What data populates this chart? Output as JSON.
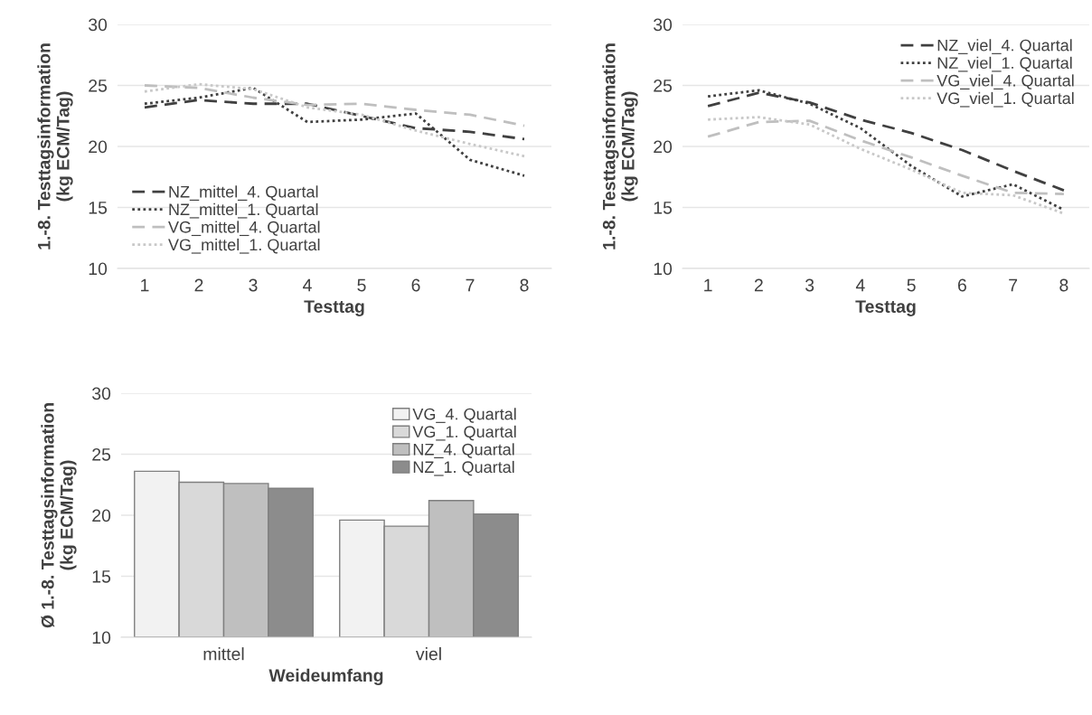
{
  "chart_data": [
    {
      "type": "line",
      "xlabel": "Testtag",
      "ylabel": "1.-8. Testtagsinformation\n(kg ECM/Tag)",
      "categories": [
        "1",
        "2",
        "3",
        "4",
        "5",
        "6",
        "7",
        "8"
      ],
      "ylim": [
        10,
        30
      ],
      "yticks": [
        10,
        15,
        20,
        25,
        30
      ],
      "grid": "y",
      "legend": "bottom left",
      "marker": "none",
      "series": [
        {
          "name": "NZ_mittel_4. Quartal",
          "color": "#404040",
          "line_style": "dashed",
          "values": [
            23.2,
            23.8,
            23.5,
            23.5,
            22.5,
            21.5,
            21.2,
            20.6
          ]
        },
        {
          "name": "NZ_mittel_1. Quartal",
          "color": "#404040",
          "line_style": "dotted",
          "values": [
            23.5,
            24.0,
            24.8,
            22.0,
            22.2,
            22.7,
            18.9,
            17.6
          ]
        },
        {
          "name": "VG_mittel_4. Quartal",
          "color": "#bfbfbf",
          "line_style": "dashed",
          "values": [
            25.0,
            24.8,
            24.0,
            23.4,
            23.5,
            23.0,
            22.6,
            21.7
          ]
        },
        {
          "name": "VG_mittel_1. Quartal",
          "color": "#c8c8c8",
          "line_style": "dotted",
          "values": [
            24.5,
            25.1,
            24.7,
            23.2,
            22.6,
            21.3,
            20.2,
            19.2
          ]
        }
      ]
    },
    {
      "type": "line",
      "xlabel": "Testtag",
      "ylabel": "1.-8. Testtagsinformation\n(kg ECM/Tag)",
      "categories": [
        "1",
        "2",
        "3",
        "4",
        "5",
        "6",
        "7",
        "8"
      ],
      "ylim": [
        10,
        30
      ],
      "yticks": [
        10,
        15,
        20,
        25,
        30
      ],
      "grid": "y",
      "legend": "top right",
      "marker": "none",
      "series": [
        {
          "name": "NZ_viel_4. Quartal",
          "color": "#404040",
          "line_style": "dashed",
          "values": [
            23.3,
            24.4,
            23.6,
            22.2,
            21.1,
            19.7,
            18.0,
            16.4
          ]
        },
        {
          "name": "NZ_viel_1. Quartal",
          "color": "#404040",
          "line_style": "dotted",
          "values": [
            24.1,
            24.6,
            23.5,
            21.5,
            18.4,
            15.9,
            16.9,
            14.8
          ]
        },
        {
          "name": "VG_viel_4. Quartal",
          "color": "#bfbfbf",
          "line_style": "dashed",
          "values": [
            20.8,
            22.0,
            22.1,
            20.5,
            19.1,
            17.6,
            16.2,
            16.1
          ]
        },
        {
          "name": "VG_viel_1. Quartal",
          "color": "#c8c8c8",
          "line_style": "dotted",
          "values": [
            22.2,
            22.4,
            21.8,
            19.8,
            18.1,
            16.2,
            16.0,
            14.5
          ]
        }
      ]
    },
    {
      "type": "bar",
      "xlabel": "Weideumfang",
      "ylabel": "Ø 1.-8. Testtagsinformation\n(kg ECM/Tag)",
      "categories": [
        "mittel",
        "viel"
      ],
      "ylim": [
        10,
        30
      ],
      "yticks": [
        10,
        15,
        20,
        25,
        30
      ],
      "grid": "y",
      "legend": "top right",
      "series": [
        {
          "name": "VG_4. Quartal",
          "color": "#f2f2f2",
          "values": [
            23.6,
            19.6
          ]
        },
        {
          "name": "VG_1. Quartal",
          "color": "#d9d9d9",
          "values": [
            22.7,
            19.1
          ]
        },
        {
          "name": "NZ_4. Quartal",
          "color": "#bfbfbf",
          "values": [
            22.6,
            21.2
          ]
        },
        {
          "name": "NZ_1. Quartal",
          "color": "#8c8c8c",
          "values": [
            22.2,
            20.1
          ]
        }
      ]
    }
  ]
}
